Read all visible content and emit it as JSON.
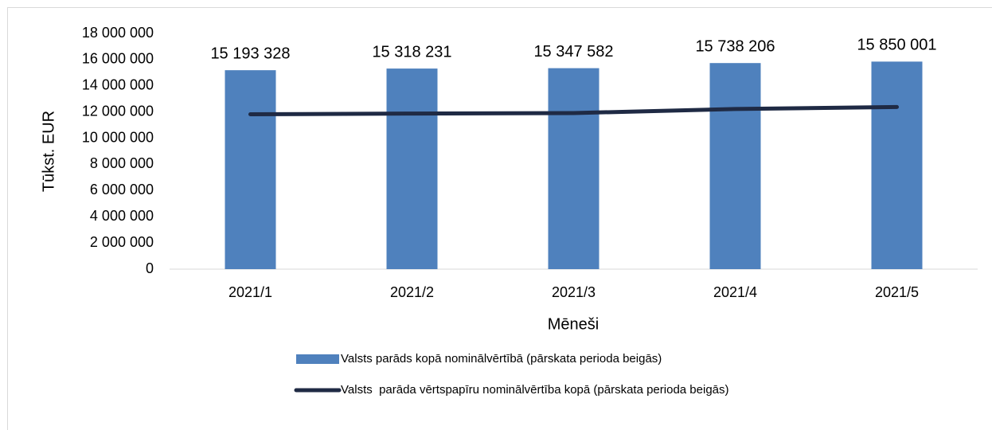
{
  "chart_data": {
    "type": "bar",
    "y_label": "Tūkst. EUR",
    "x_label": "Mēneši",
    "categories": [
      "2021/1",
      "2021/2",
      "2021/3",
      "2021/4",
      "2021/5"
    ],
    "series": [
      {
        "name": "Valsts parāds kopā nominālvērtībā (pārskata perioda beigās)",
        "type": "bar",
        "color": "#4f81bd",
        "values": [
          15193328,
          15318231,
          15347582,
          15738206,
          15850001
        ],
        "value_labels": [
          "15 193 328",
          "15 318 231",
          "15 347 582",
          "15 738 206",
          "15 850 001"
        ]
      },
      {
        "name": "Valsts  parāda vērtspapīru nominālvērtība kopā (pārskata perioda beigās)",
        "type": "line",
        "color": "#1f2a44",
        "values": [
          11830000,
          11880000,
          11920000,
          12230000,
          12380000
        ]
      }
    ],
    "ylim": [
      0,
      18000000
    ],
    "yticks": [
      {
        "value": 0,
        "label": "0"
      },
      {
        "value": 2000000,
        "label": "2 000 000"
      },
      {
        "value": 4000000,
        "label": "4 000 000"
      },
      {
        "value": 6000000,
        "label": "6 000 000"
      },
      {
        "value": 8000000,
        "label": "8 000 000"
      },
      {
        "value": 10000000,
        "label": "10 000 000"
      },
      {
        "value": 12000000,
        "label": "12 000 000"
      },
      {
        "value": 14000000,
        "label": "14 000 000"
      },
      {
        "value": 16000000,
        "label": "16 000 000"
      },
      {
        "value": 18000000,
        "label": "18 000 000"
      }
    ],
    "grid": false,
    "legend": "bottom"
  }
}
